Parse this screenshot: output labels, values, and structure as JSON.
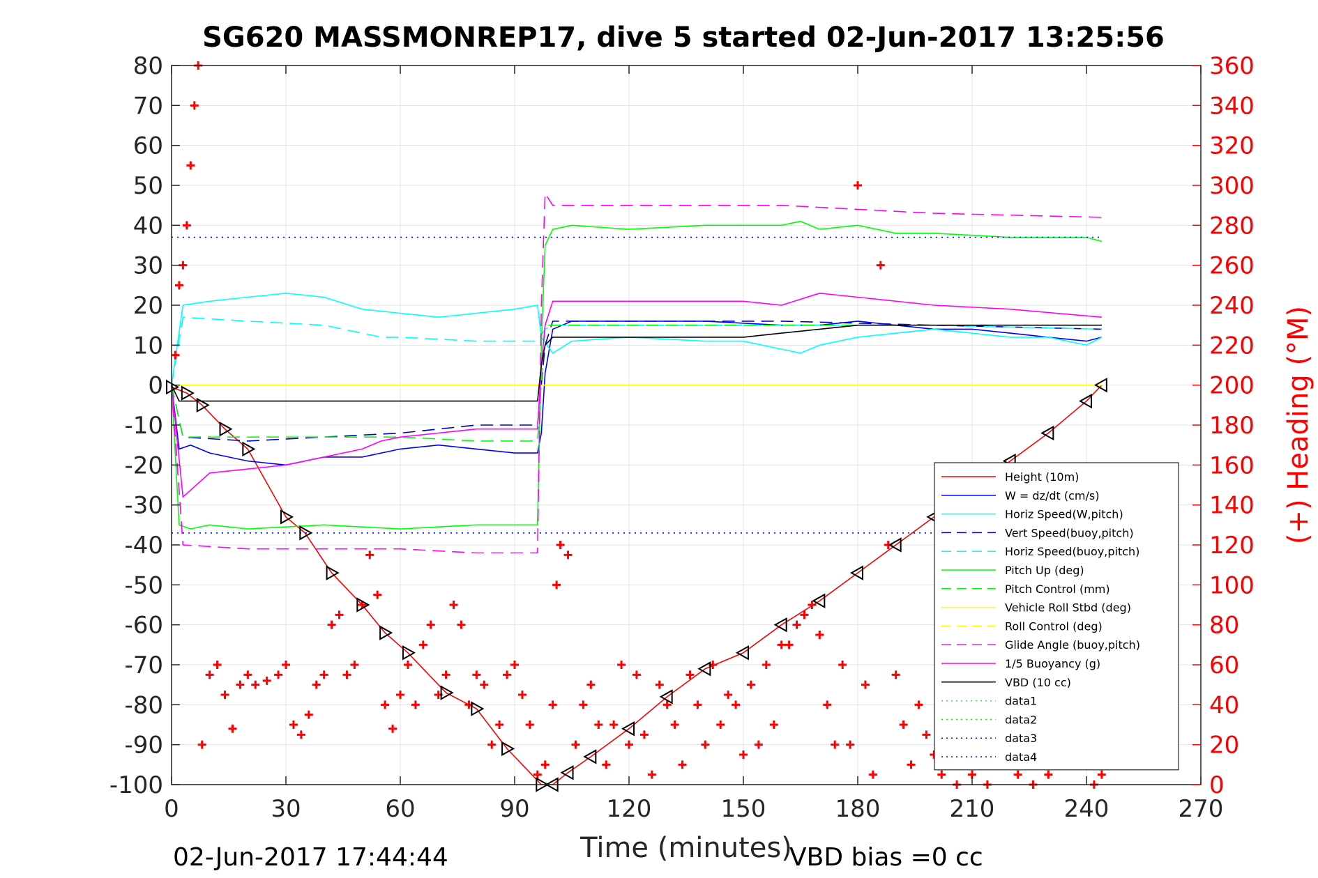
{
  "chart_data": {
    "type": "line",
    "title": "SG620 MASSMONREP17, dive 5 started 02-Jun-2017 13:25:56",
    "xlabel": "Time (minutes)",
    "ylabel_right": "(+) Heading (°M)",
    "xlim": [
      0,
      270
    ],
    "ylim": [
      -100,
      80
    ],
    "ylim_right": [
      0,
      360
    ],
    "xticks": [
      "0",
      "30",
      "60",
      "90",
      "120",
      "150",
      "180",
      "210",
      "240",
      "270"
    ],
    "yticks": [
      "80",
      "70",
      "60",
      "50",
      "40",
      "30",
      "20",
      "10",
      "0",
      "-10",
      "-20",
      "-30",
      "-40",
      "-50",
      "-60",
      "-70",
      "-80",
      "-90",
      "-100"
    ],
    "yticks_right": [
      "360",
      "340",
      "320",
      "300",
      "280",
      "260",
      "240",
      "220",
      "200",
      "180",
      "160",
      "140",
      "120",
      "100",
      "80",
      "60",
      "40",
      "20",
      "0"
    ],
    "grid": true,
    "legend_position": "lower-right",
    "footer_left": "02-Jun-2017 17:44:44",
    "footer_right": "VBD bias =0 cc",
    "colors": {
      "left_axis": "#262626",
      "right_axis": "#ff0000",
      "grid": "#e3e3e3"
    },
    "series": [
      {
        "name": "Height (10m)",
        "color": "#ff0000",
        "dash": "solid",
        "x": [
          0,
          4,
          8,
          14,
          20,
          30,
          35,
          42,
          50,
          56,
          62,
          72,
          80,
          88,
          97,
          100,
          104,
          110,
          120,
          130,
          140,
          150,
          160,
          170,
          180,
          190,
          200,
          210,
          220,
          230,
          240,
          244
        ],
        "y": [
          -0.5,
          -2,
          -5,
          -11,
          -16,
          -33,
          -37,
          -47,
          -55,
          -62,
          -67,
          -77,
          -81,
          -91,
          -100,
          -100,
          -97,
          -93,
          -86,
          -78,
          -71,
          -67,
          -60,
          -54,
          -47,
          -40,
          -33,
          -26,
          -19,
          -12,
          -4,
          0
        ]
      },
      {
        "name": "W = dz/dt (cm/s)",
        "color": "#0000ff",
        "dash": "solid",
        "x": [
          0,
          2,
          5,
          10,
          20,
          30,
          40,
          50,
          60,
          70,
          80,
          90,
          96,
          97,
          98,
          100,
          105,
          120,
          140,
          160,
          170,
          180,
          190,
          200,
          210,
          220,
          230,
          240,
          244
        ],
        "y": [
          0,
          -16,
          -15,
          -17,
          -19,
          -20,
          -18,
          -18,
          -16,
          -15,
          -16,
          -17,
          -17,
          -12,
          3,
          14,
          16,
          16,
          16,
          15,
          15,
          16,
          15,
          14,
          14,
          13,
          12,
          11,
          12
        ]
      },
      {
        "name": "Horiz Speed(W,pitch)",
        "color": "#00ffff",
        "dash": "solid",
        "x": [
          0,
          3,
          10,
          20,
          30,
          40,
          50,
          60,
          70,
          80,
          90,
          96,
          97,
          100,
          105,
          120,
          140,
          150,
          160,
          165,
          170,
          180,
          190,
          200,
          210,
          220,
          230,
          240,
          244
        ],
        "y": [
          0,
          20,
          21,
          22,
          23,
          22,
          19,
          18,
          17,
          18,
          19,
          20,
          12,
          8,
          11,
          12,
          11,
          11,
          9,
          8,
          10,
          12,
          13,
          14,
          13,
          12,
          12,
          10,
          12
        ]
      },
      {
        "name": "Vert Speed(buoy,pitch)",
        "color": "#0000cc",
        "dash": "dash",
        "x": [
          0,
          3,
          20,
          40,
          60,
          80,
          96,
          98,
          100,
          120,
          160,
          200,
          244
        ],
        "y": [
          0,
          -13,
          -14,
          -13,
          -12,
          -10,
          -10,
          10,
          16,
          16,
          16,
          15,
          14
        ]
      },
      {
        "name": "Horiz Speed(buoy,pitch)",
        "color": "#00ffff",
        "dash": "dash",
        "x": [
          0,
          3,
          20,
          40,
          50,
          55,
          60,
          80,
          96,
          98,
          100,
          150,
          200,
          244
        ],
        "y": [
          0,
          17,
          16,
          15,
          13,
          12,
          12,
          11,
          11,
          14,
          15,
          15,
          15,
          14
        ]
      },
      {
        "name": "Pitch Up (deg)",
        "color": "#00ff00",
        "dash": "solid",
        "x": [
          0,
          2,
          5,
          10,
          20,
          40,
          60,
          80,
          96,
          97,
          98,
          100,
          105,
          120,
          140,
          160,
          165,
          170,
          180,
          190,
          200,
          220,
          240,
          244
        ],
        "y": [
          0,
          -35,
          -36,
          -35,
          -36,
          -35,
          -36,
          -35,
          -35,
          10,
          35,
          39,
          40,
          39,
          40,
          40,
          41,
          39,
          40,
          38,
          38,
          37,
          37,
          36
        ]
      },
      {
        "name": "Pitch Control (mm)",
        "color": "#00ff00",
        "dash": "dash",
        "x": [
          0,
          3,
          20,
          40,
          60,
          80,
          96,
          98,
          244
        ],
        "y": [
          0,
          -13,
          -13,
          -13,
          -13,
          -14,
          -14,
          15,
          15
        ]
      },
      {
        "name": "Vehicle Roll Stbd (deg)",
        "color": "#ffff00",
        "dash": "solid",
        "x": [
          0,
          10,
          20,
          30,
          40,
          50,
          60,
          70,
          80,
          90,
          96,
          100,
          110,
          120,
          130,
          140,
          150,
          160,
          170,
          180,
          190,
          200,
          210,
          220,
          230,
          240,
          244
        ],
        "y": [
          0,
          0,
          0,
          0,
          0,
          0,
          0,
          0,
          0,
          0,
          0,
          0,
          0,
          0,
          0,
          0,
          0,
          0,
          0,
          0,
          0,
          0,
          0,
          0,
          0,
          0,
          0
        ]
      },
      {
        "name": "Roll Control (deg)",
        "color": "#ffff00",
        "dash": "dash",
        "x": [
          0,
          10,
          20,
          30,
          40,
          50,
          60,
          70,
          80,
          90,
          96,
          100,
          110,
          120,
          130,
          140,
          150,
          160,
          170,
          180,
          190,
          200,
          210,
          220,
          230,
          240,
          244
        ],
        "y": [
          0,
          0,
          0,
          0,
          0,
          0,
          0,
          0,
          0,
          0,
          0,
          0,
          0,
          0,
          0,
          0,
          0,
          0,
          0,
          0,
          0,
          0,
          0,
          0,
          0,
          0,
          0
        ]
      },
      {
        "name": "Glide Angle (buoy,pitch)",
        "color": "#ff00ff",
        "dash": "dash",
        "x": [
          0,
          3,
          20,
          40,
          60,
          80,
          96,
          97,
          98,
          100,
          120,
          160,
          180,
          200,
          244
        ],
        "y": [
          0,
          -40,
          -41,
          -41,
          -41,
          -42,
          -42,
          20,
          48,
          45,
          45,
          45,
          44,
          43,
          42
        ]
      },
      {
        "name": "1/5 Buoyancy (g)",
        "color": "#ff00ff",
        "dash": "solid",
        "x": [
          0,
          3,
          10,
          20,
          30,
          40,
          50,
          55,
          60,
          70,
          80,
          96,
          97,
          98,
          100,
          120,
          140,
          150,
          160,
          170,
          180,
          200,
          220,
          244
        ],
        "y": [
          0,
          -28,
          -22,
          -21,
          -20,
          -18,
          -16,
          -14,
          -13,
          -12,
          -11,
          -11,
          5,
          15,
          21,
          21,
          21,
          21,
          20,
          23,
          22,
          20,
          19,
          17
        ]
      },
      {
        "name": "VBD (10 cc)",
        "color": "#000000",
        "dash": "solid",
        "x": [
          0,
          2,
          10,
          40,
          80,
          96,
          97,
          98,
          100,
          120,
          140,
          150,
          160,
          170,
          180,
          190,
          200,
          210,
          220,
          230,
          240,
          244
        ],
        "y": [
          0,
          -4,
          -4,
          -4,
          -4,
          -4,
          5,
          10,
          12,
          12,
          12,
          12,
          13,
          14,
          15,
          15,
          15,
          15,
          15,
          15,
          15,
          15
        ]
      },
      {
        "name": "data1",
        "color": "#00ff00",
        "dash": "dot",
        "x": [],
        "y": []
      },
      {
        "name": "data2",
        "color": "#00ff00",
        "dash": "dot",
        "x": [],
        "y": []
      },
      {
        "name": "data3",
        "color": "#0000ff",
        "dash": "dot",
        "x": [
          0,
          244
        ],
        "y": [
          37,
          37
        ]
      },
      {
        "name": "data4",
        "color": "#0000ff",
        "dash": "dot",
        "x": [
          0,
          244
        ],
        "y": [
          -37,
          -37
        ]
      },
      {
        "name": "(+) Heading (°M)",
        "axis": "right",
        "marker": "+",
        "color": "#ff0000",
        "x": [
          1,
          2,
          3,
          4,
          5,
          6,
          7,
          8,
          10,
          12,
          14,
          16,
          18,
          20,
          22,
          25,
          28,
          30,
          32,
          34,
          36,
          38,
          40,
          42,
          44,
          46,
          48,
          50,
          52,
          54,
          56,
          58,
          60,
          62,
          64,
          66,
          68,
          70,
          72,
          74,
          76,
          78,
          80,
          82,
          84,
          86,
          88,
          90,
          92,
          94,
          96,
          98,
          100,
          101,
          102,
          104,
          106,
          108,
          110,
          112,
          114,
          116,
          118,
          120,
          122,
          124,
          126,
          128,
          130,
          132,
          134,
          136,
          138,
          140,
          142,
          144,
          146,
          148,
          150,
          152,
          154,
          156,
          158,
          160,
          162,
          164,
          166,
          168,
          170,
          172,
          174,
          176,
          178,
          180,
          182,
          184,
          186,
          188,
          190,
          192,
          194,
          196,
          198,
          200,
          202,
          204,
          206,
          210,
          214,
          218,
          222,
          226,
          230,
          234,
          238,
          242,
          244
        ],
        "y": [
          215,
          250,
          260,
          280,
          310,
          340,
          360,
          20,
          55,
          60,
          45,
          28,
          50,
          55,
          50,
          52,
          55,
          60,
          30,
          25,
          35,
          50,
          55,
          80,
          85,
          55,
          60,
          90,
          115,
          95,
          40,
          28,
          45,
          60,
          40,
          70,
          80,
          45,
          55,
          90,
          80,
          40,
          55,
          50,
          20,
          30,
          55,
          60,
          45,
          30,
          5,
          10,
          40,
          100,
          120,
          115,
          20,
          40,
          50,
          30,
          10,
          30,
          60,
          20,
          55,
          25,
          5,
          50,
          40,
          30,
          10,
          55,
          40,
          20,
          60,
          30,
          45,
          40,
          15,
          50,
          20,
          60,
          30,
          70,
          70,
          80,
          85,
          90,
          75,
          40,
          20,
          60,
          20,
          300,
          50,
          5,
          260,
          120,
          55,
          30,
          10,
          40,
          25,
          15,
          5,
          40,
          0,
          5,
          0,
          10,
          5,
          0,
          5,
          10,
          30,
          0,
          5
        ]
      }
    ]
  }
}
